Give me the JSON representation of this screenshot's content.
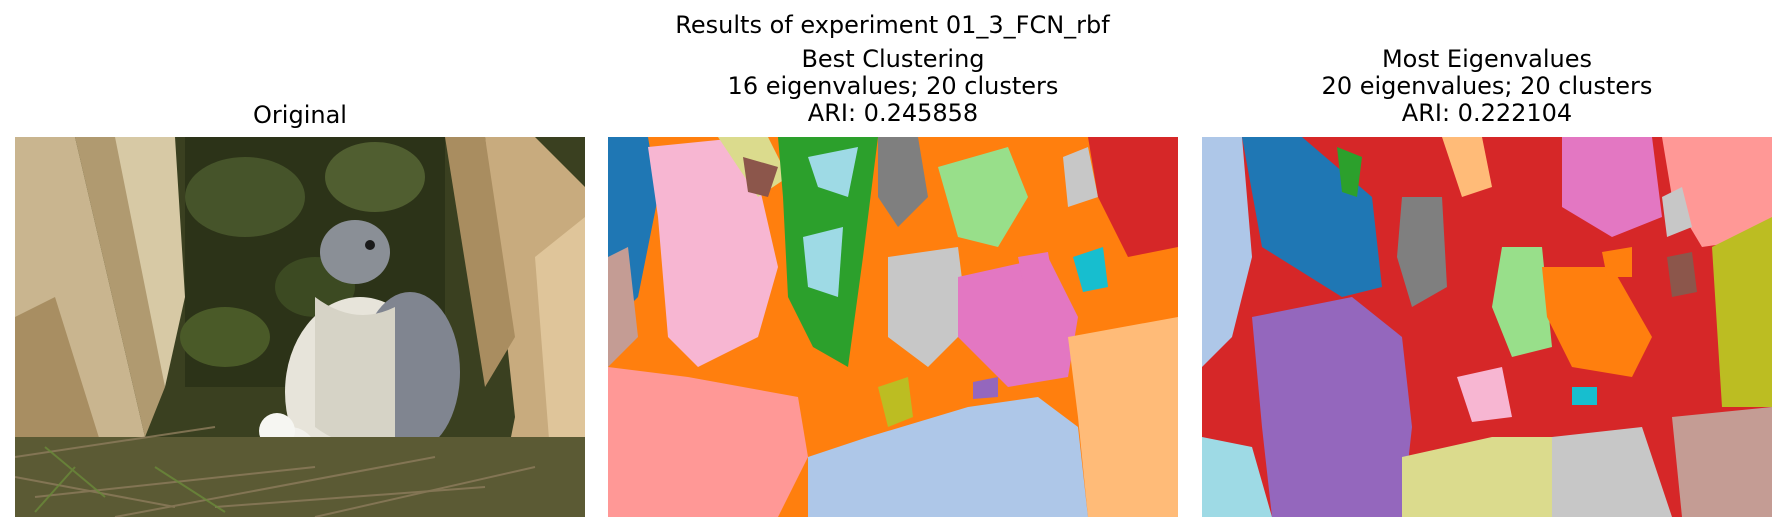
{
  "figure": {
    "suptitle": "Results of experiment 01_3_FCN_rbf"
  },
  "panels": [
    {
      "title": "Original"
    },
    {
      "title_line1": "Best Clustering",
      "title_line2": "16 eigenvalues; 20 clusters",
      "title_line3": "ARI: 0.245858",
      "eigenvalues": 16,
      "clusters": 20,
      "ari": 0.245858
    },
    {
      "title_line1": "Most Eigenvalues",
      "title_line2": "20 eigenvalues; 20 clusters",
      "title_line3": "ARI: 0.222104",
      "eigenvalues": 20,
      "clusters": 20,
      "ari": 0.222104
    }
  ],
  "colors": {
    "blue": "#1f77b4",
    "light_blue": "#aec7e8",
    "orange": "#ff7f0e",
    "light_orange": "#ffbb78",
    "green": "#2ca02c",
    "light_green": "#98df8a",
    "red": "#d62728",
    "light_red": "#ff9896",
    "purple": "#9467bd",
    "brown": "#8c564b",
    "pink": "#e377c2",
    "light_pink": "#f7b6d2",
    "gray": "#7f7f7f",
    "light_gray": "#c7c7c7",
    "olive": "#bcbd22",
    "light_olive": "#dbdb8d",
    "cyan": "#17becf",
    "light_cyan": "#9edae5"
  }
}
